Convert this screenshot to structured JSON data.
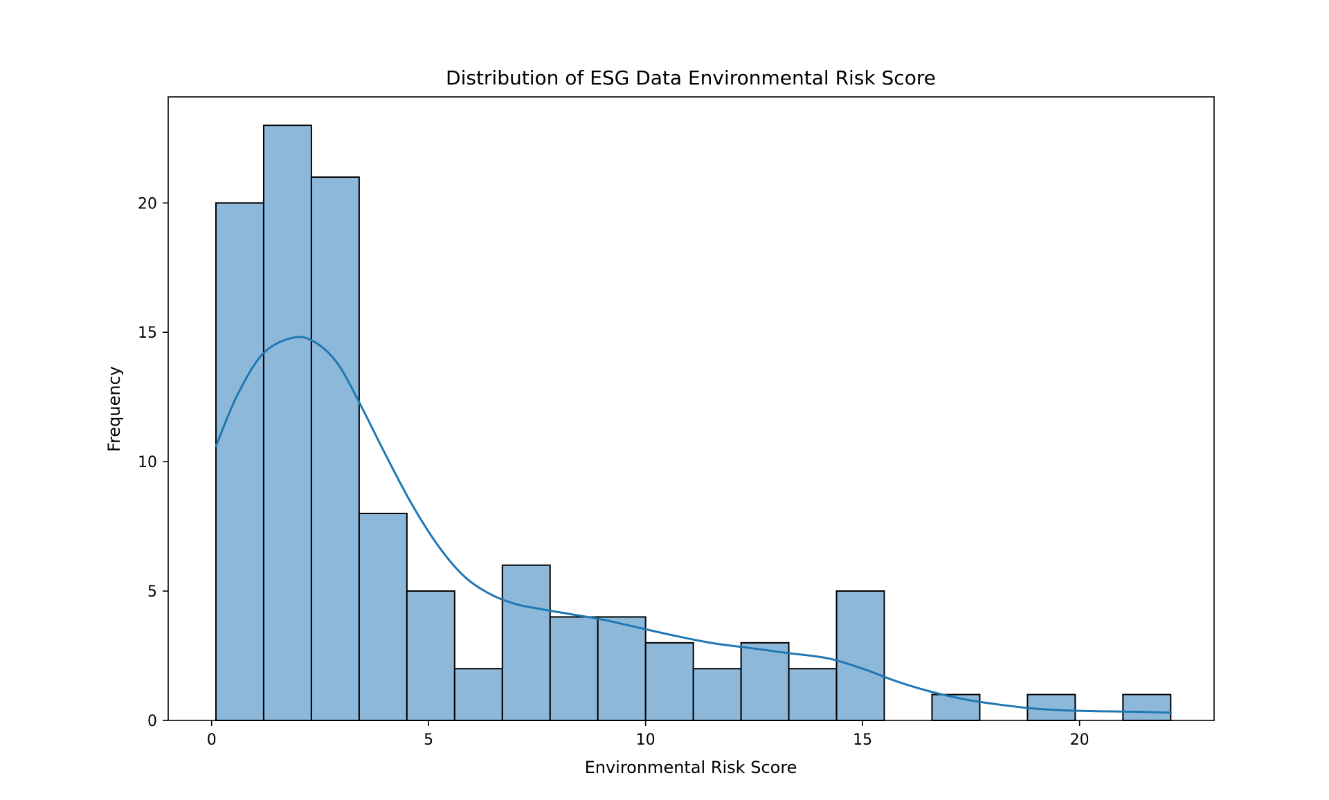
{
  "chart_data": {
    "type": "bar",
    "subtype": "histogram-with-kde",
    "title": "Distribution of ESG Data Environmental Risk Score",
    "xlabel": "Environmental Risk Score",
    "ylabel": "Frequency",
    "xlim": [
      -1.0,
      23.1
    ],
    "ylim": [
      0,
      24.1
    ],
    "x_ticks": [
      0,
      5,
      10,
      15,
      20
    ],
    "y_ticks": [
      0,
      5,
      10,
      15,
      20
    ],
    "grid": false,
    "legend": "none",
    "bin_edges": [
      0.1,
      1.2,
      2.3,
      3.4,
      4.5,
      5.6,
      6.7,
      7.8,
      8.9,
      10.0,
      11.1,
      12.2,
      13.3,
      14.4,
      15.5,
      16.6,
      17.7,
      18.8,
      19.9,
      21.0,
      22.1
    ],
    "values": [
      20,
      23,
      21,
      8,
      5,
      2,
      6,
      4,
      4,
      3,
      2,
      3,
      2,
      5,
      0,
      1,
      0,
      1,
      0,
      1
    ],
    "kde": {
      "x": [
        0.1,
        0.6,
        1.2,
        1.9,
        2.4,
        2.9,
        3.4,
        4.0,
        4.6,
        5.2,
        5.8,
        6.4,
        7.0,
        7.6,
        8.3,
        9.0,
        9.8,
        10.6,
        11.5,
        12.4,
        13.3,
        14.2,
        15.0,
        15.8,
        16.6,
        17.4,
        18.2,
        19.0,
        19.8,
        20.6,
        21.4,
        22.1
      ],
      "y": [
        10.6,
        12.6,
        14.2,
        14.8,
        14.6,
        13.8,
        12.3,
        10.3,
        8.4,
        6.8,
        5.6,
        4.9,
        4.5,
        4.3,
        4.1,
        3.9,
        3.6,
        3.3,
        3.0,
        2.8,
        2.6,
        2.4,
        2.0,
        1.5,
        1.1,
        0.8,
        0.6,
        0.45,
        0.38,
        0.35,
        0.33,
        0.3
      ]
    },
    "colors": {
      "bar_fill": "#8db8da",
      "bar_edge": "#000000",
      "kde_line": "#1f77b4",
      "axes": "#000000"
    }
  }
}
